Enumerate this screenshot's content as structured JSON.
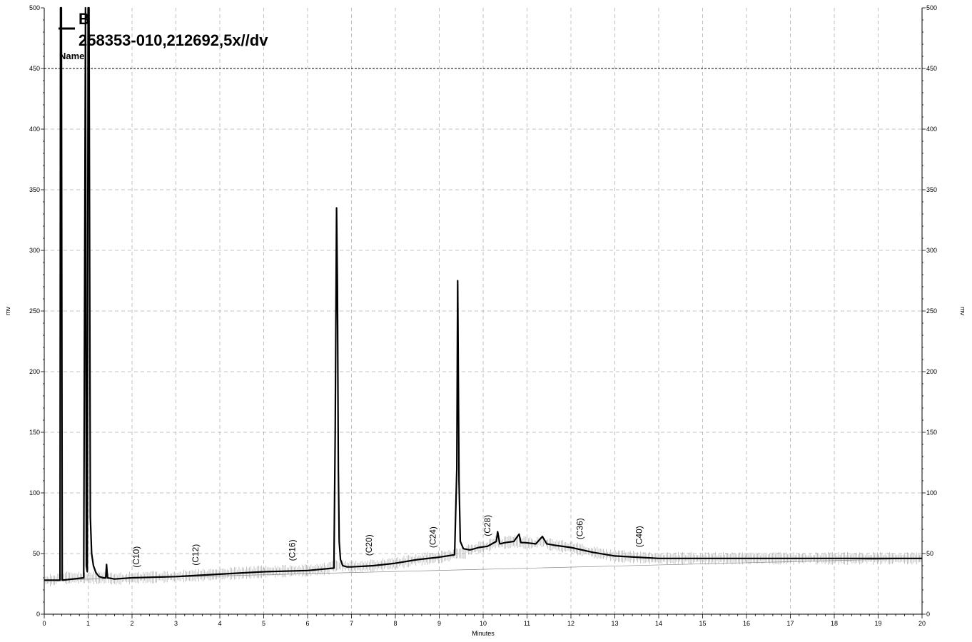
{
  "chart_data": {
    "type": "line",
    "title": "",
    "xlabel": "Minutes",
    "ylabel": "mv",
    "ylabel_right": "mv",
    "xlim": [
      0,
      20
    ],
    "ylim": [
      0,
      500
    ],
    "x_ticks": [
      "0",
      "1",
      "2",
      "3",
      "4",
      "5",
      "6",
      "7",
      "8",
      "9",
      "10",
      "11",
      "12",
      "13",
      "14",
      "15",
      "16",
      "17",
      "18",
      "19",
      "20"
    ],
    "y_ticks": [
      "0",
      "50",
      "100",
      "150",
      "200",
      "250",
      "300",
      "350",
      "400",
      "450",
      "500"
    ],
    "grid": true,
    "reference_line_y": 450,
    "legend": {
      "letter": "B",
      "name_label": "Name",
      "sample": "258353-010,212692,5x//dv",
      "placement": "top-left"
    },
    "peak_labels": [
      {
        "label": "(C10)",
        "x": 2.1
      },
      {
        "label": "(C12)",
        "x": 3.45
      },
      {
        "label": "(C16)",
        "x": 5.65
      },
      {
        "label": "(C20)",
        "x": 7.4
      },
      {
        "label": "(C24)",
        "x": 8.85
      },
      {
        "label": "(C28)",
        "x": 10.1
      },
      {
        "label": "(C36)",
        "x": 12.2
      },
      {
        "label": "(C40)",
        "x": 13.55
      }
    ],
    "series": [
      {
        "x": [
          0,
          0.36,
          0.37,
          0.39,
          0.41,
          0.9,
          0.94,
          0.96,
          0.98,
          1.0,
          1.02,
          1.05,
          1.08,
          1.12,
          1.18,
          1.25,
          1.35,
          1.4,
          1.42,
          1.44,
          1.6,
          2,
          3,
          4,
          5,
          6,
          6.6,
          6.63,
          6.66,
          6.68,
          6.7,
          6.72,
          6.75,
          6.8,
          6.9,
          7.0,
          7.5,
          8,
          8.5,
          9,
          9.35,
          9.4,
          9.42,
          9.45,
          9.48,
          9.55,
          9.7,
          9.9,
          10.1,
          10.2,
          10.3,
          10.33,
          10.38,
          10.5,
          10.7,
          10.82,
          10.86,
          10.95,
          11.2,
          11.35,
          11.45,
          11.6,
          12,
          12.5,
          13,
          13.5,
          14,
          15,
          16,
          17,
          18,
          19,
          20
        ],
        "y": [
          28,
          28,
          500,
          500,
          28,
          30,
          500,
          40,
          35,
          500,
          500,
          80,
          50,
          40,
          34,
          31,
          30,
          30,
          41,
          30,
          29,
          30,
          31,
          33,
          35,
          36,
          38,
          150,
          335,
          270,
          120,
          60,
          45,
          40,
          39,
          39,
          40,
          42,
          45,
          47,
          49,
          120,
          275,
          110,
          60,
          54,
          53,
          55,
          56,
          58,
          60,
          68,
          58,
          59,
          60,
          66,
          59,
          59,
          58,
          64,
          58,
          57,
          55,
          51,
          48,
          47,
          46,
          46,
          46,
          46,
          46,
          46,
          46
        ]
      }
    ]
  }
}
